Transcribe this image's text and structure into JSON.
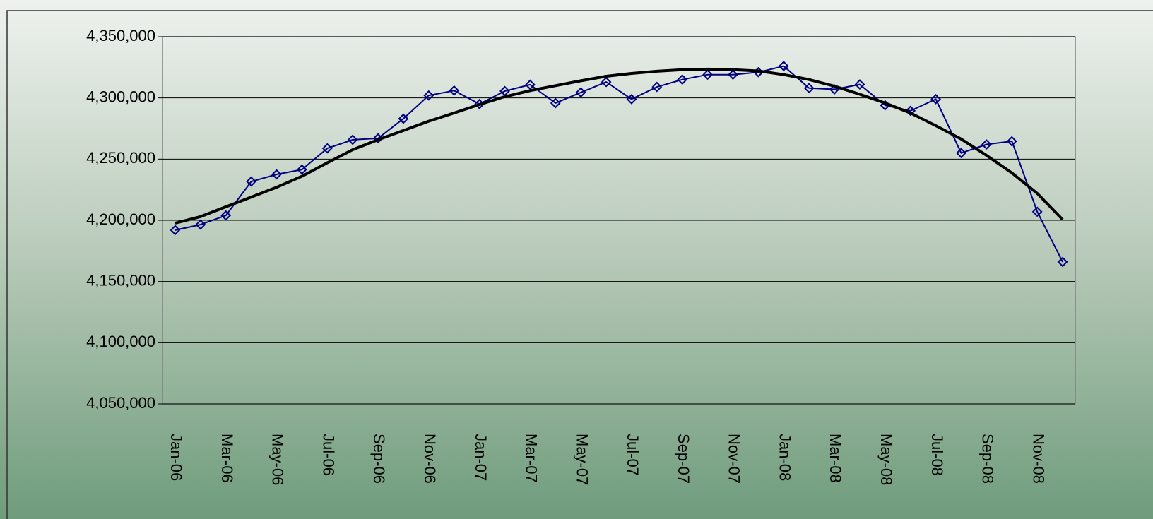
{
  "chart_data": {
    "type": "line",
    "categories": [
      "Jan-06",
      null,
      "Mar-06",
      null,
      "May-06",
      null,
      "Jul-06",
      null,
      "Sep-06",
      null,
      "Nov-06",
      null,
      "Jan-07",
      null,
      "Mar-07",
      null,
      "May-07",
      null,
      "Jul-07",
      null,
      "Sep-07",
      null,
      "Nov-07",
      null,
      "Jan-08",
      null,
      "Mar-08",
      null,
      "May-08",
      null,
      "Jul-08",
      null,
      "Sep-08",
      null,
      "Nov-08",
      null
    ],
    "series": [
      {
        "color": "#000080",
        "marker": "diamond",
        "values": [
          4192000,
          4196500,
          4204000,
          4231700,
          4237500,
          4241500,
          4258800,
          4265800,
          4267000,
          4283000,
          4302000,
          4306000,
          4295000,
          4305600,
          4310800,
          4295800,
          4304500,
          4313000,
          4299000,
          4309000,
          4315000,
          4319000,
          4319000,
          4321000,
          4326000,
          4308000,
          4307000,
          4311000,
          4294000,
          4289500,
          4299000,
          4255000,
          4262000,
          4264600,
          4207000,
          4166000
        ]
      },
      {
        "color": "#000000",
        "marker": "none",
        "values": [
          4197700,
          4203000,
          4211000,
          4219000,
          4227000,
          4236000,
          4247000,
          4257700,
          4265800,
          4273300,
          4281000,
          4287700,
          4294600,
          4301000,
          4306000,
          4310000,
          4314000,
          4317700,
          4320000,
          4321800,
          4323000,
          4323500,
          4323000,
          4322000,
          4319000,
          4315000,
          4309600,
          4303000,
          4295800,
          4287700,
          4277300,
          4266400,
          4253000,
          4238700,
          4222000,
          4200600
        ]
      }
    ],
    "ylim": [
      4050000,
      4350000
    ],
    "yticks": [
      {
        "value": 4050000,
        "label": "4,050,000"
      },
      {
        "value": 4100000,
        "label": "4,100,000"
      },
      {
        "value": 4150000,
        "label": "4,150,000"
      },
      {
        "value": 4200000,
        "label": "4,200,000"
      },
      {
        "value": 4250000,
        "label": "4,250,000"
      },
      {
        "value": 4300000,
        "label": "4,300,000"
      },
      {
        "value": 4350000,
        "label": "4,350,000"
      }
    ],
    "grid": true
  }
}
